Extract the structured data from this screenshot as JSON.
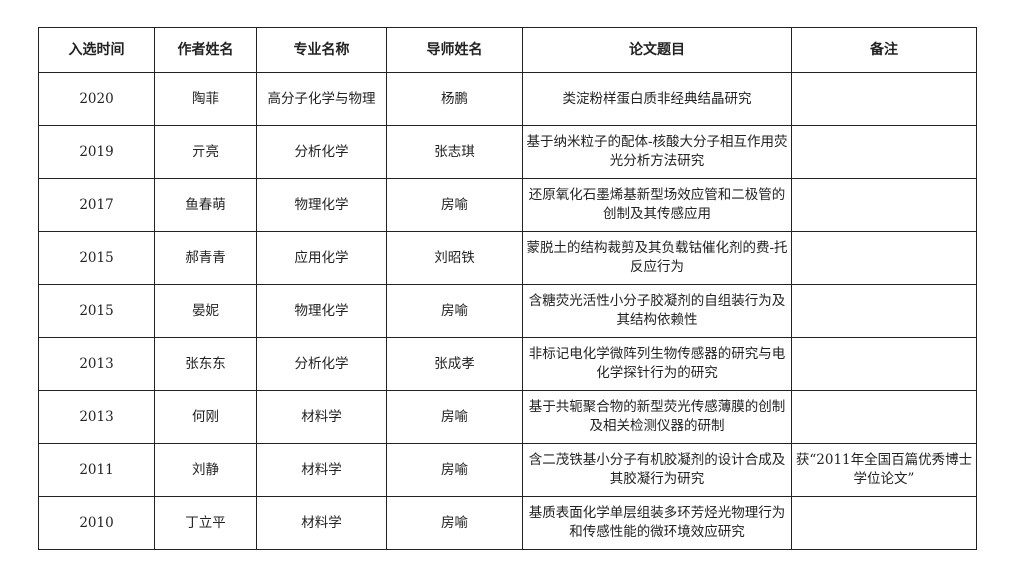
{
  "headers": [
    "入选时间",
    "作者姓名",
    "专业名称",
    "导师姓名",
    "论文题目",
    "备注"
  ],
  "rows": [
    {
      "year": "2020",
      "author": "陶菲",
      "major": "高分子化学与物理",
      "advisor": "杨鹏",
      "title": "类淀粉样蛋白质非经典结晶研究",
      "note": ""
    },
    {
      "year": "2019",
      "author": "亓亮",
      "major": "分析化学",
      "advisor": "张志琪",
      "title": "基于纳米粒子的配体-核酸大分子相互作用荧光分析方法研究",
      "note": ""
    },
    {
      "year": "2017",
      "author": "鱼春萌",
      "major": "物理化学",
      "advisor": "房喻",
      "title": "还原氧化石墨烯基新型场效应管和二极管的创制及其传感应用",
      "note": ""
    },
    {
      "year": "2015",
      "author": "郝青青",
      "major": "应用化学",
      "advisor": "刘昭铁",
      "title": "蒙脱土的结构裁剪及其负载钴催化剂的费-托反应行为",
      "note": ""
    },
    {
      "year": "2015",
      "author": "晏妮",
      "major": "物理化学",
      "advisor": "房喻",
      "title": "含糖荧光活性小分子胶凝剂的自组装行为及其结构依赖性",
      "note": ""
    },
    {
      "year": "2013",
      "author": "张东东",
      "major": "分析化学",
      "advisor": "张成孝",
      "title": "非标记电化学微阵列生物传感器的研究与电化学探针行为的研究",
      "note": ""
    },
    {
      "year": "2013",
      "author": "何刚",
      "major": "材料学",
      "advisor": "房喻",
      "title": "基于共轭聚合物的新型荧光传感薄膜的创制及相关检测仪器的研制",
      "note": ""
    },
    {
      "year": "2011",
      "author": "刘静",
      "major": "材料学",
      "advisor": "房喻",
      "title": "含二茂铁基小分子有机胶凝剂的设计合成及其胶凝行为研究",
      "note": "获“2011年全国百篇优秀博士学位论文”"
    },
    {
      "year": "2010",
      "author": "丁立平",
      "major": "材料学",
      "advisor": "房喻",
      "title": "基质表面化学单层组装多环芳烃光物理行为和传感性能的微环境效应研究",
      "note": ""
    }
  ]
}
